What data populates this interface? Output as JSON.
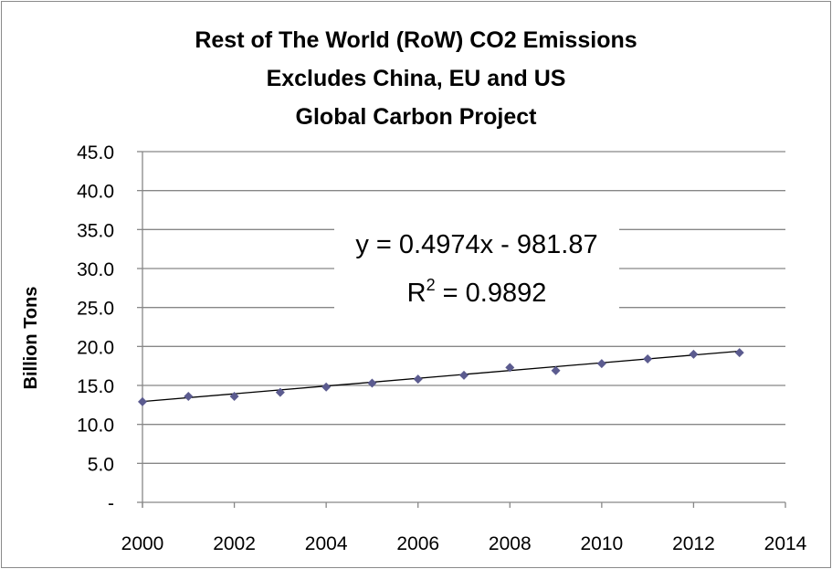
{
  "chart_data": {
    "type": "scatter",
    "title": [
      "Rest of The World (RoW) CO2 Emissions",
      "Excludes China, EU and US",
      "Global Carbon Project"
    ],
    "xlabel": "",
    "ylabel": "Billion Tons",
    "xlim": [
      2000,
      2014
    ],
    "ylim": [
      0,
      45
    ],
    "x_ticks": [
      "2000",
      "2002",
      "2004",
      "2006",
      "2008",
      "2010",
      "2012",
      "2014"
    ],
    "y_ticks": [
      "-",
      "5.0",
      "10.0",
      "15.0",
      "20.0",
      "25.0",
      "30.0",
      "35.0",
      "40.0",
      "45.0"
    ],
    "grid": "horizontal",
    "x": [
      2000,
      2001,
      2002,
      2003,
      2004,
      2005,
      2006,
      2007,
      2008,
      2009,
      2010,
      2011,
      2012,
      2013
    ],
    "values": [
      12.9,
      13.6,
      13.6,
      14.1,
      14.8,
      15.3,
      15.8,
      16.3,
      17.3,
      16.9,
      17.8,
      18.4,
      19.0,
      19.2
    ],
    "marker_color": "#5b5b8f",
    "trendline": {
      "type": "linear",
      "slope": 0.4974,
      "intercept": -981.87,
      "equation": "y = 0.4974x - 981.87",
      "r2_label": "R",
      "r2_sup": "2",
      "r2_value": " = 0.9892"
    }
  }
}
